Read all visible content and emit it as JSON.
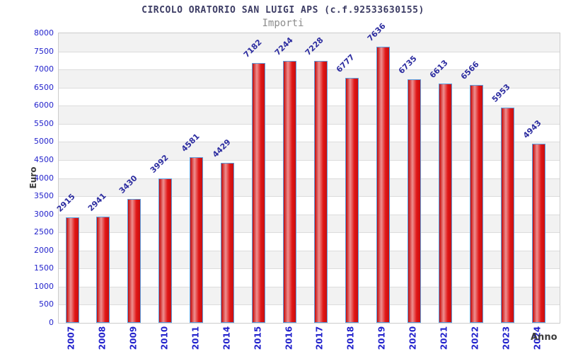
{
  "chart_data": {
    "type": "bar",
    "title": "CIRCOLO ORATORIO SAN LUIGI APS (c.f.92533630155)",
    "subtitle": "Importi",
    "xlabel": "Anno",
    "ylabel": "Euro",
    "categories": [
      "2007",
      "2008",
      "2009",
      "2010",
      "2011",
      "2014",
      "2015",
      "2016",
      "2017",
      "2018",
      "2019",
      "2020",
      "2021",
      "2022",
      "2023",
      "2024"
    ],
    "values": [
      2915,
      2941,
      3430,
      3992,
      4581,
      4429,
      7182,
      7244,
      7228,
      6777,
      7636,
      6735,
      6613,
      6566,
      5953,
      4943
    ],
    "ylim": [
      0,
      8000
    ],
    "ytick_step": 500,
    "grid": "horizontal-bands-alternating",
    "legend": "none",
    "value_label_rotation_deg": -45,
    "xtick_rotation_deg": -90,
    "colors": {
      "bar_fill_gradient": [
        "#c40909",
        "#ee9090",
        "#e01616",
        "#c90f0f"
      ],
      "bar_border": "#5b9fe0",
      "value_label": "#2d2da0",
      "tick_label": "#2323cc",
      "axis_title": "#3c3c3c",
      "chart_title": "#3c3c64",
      "subtitle": "#8c8c8c",
      "band_gray": "#f2f2f2",
      "band_white": "#ffffff",
      "gridline": "#dcdcdc",
      "plot_border": "#cccccc"
    }
  }
}
